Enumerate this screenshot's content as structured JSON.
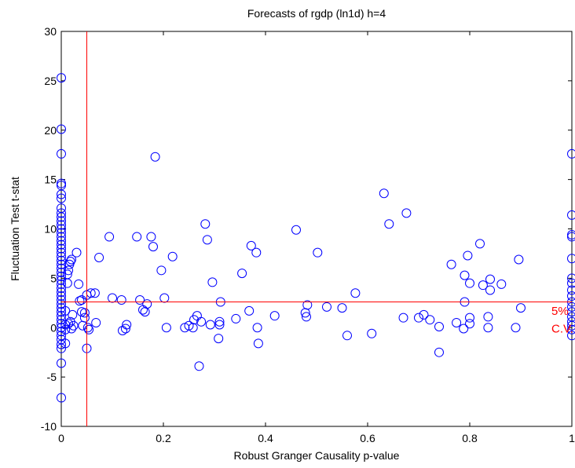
{
  "chart_data": {
    "type": "scatter",
    "title": "Forecasts of rgdp (ln1d) h=4",
    "xlabel": "Robust Granger Causality p-value",
    "ylabel": "Fluctuation Test t-stat",
    "xlim": [
      0,
      1
    ],
    "ylim": [
      -10,
      30
    ],
    "xticks": [
      "0",
      "0.2",
      "0.4",
      "0.6",
      "0.8",
      "1"
    ],
    "xtick_values": [
      0,
      0.2,
      0.4,
      0.6,
      0.8,
      1
    ],
    "yticks": [
      "-10",
      "-5",
      "0",
      "5",
      "10",
      "15",
      "20",
      "25",
      "30"
    ],
    "ytick_values": [
      -10,
      -5,
      0,
      5,
      10,
      15,
      20,
      25,
      30
    ],
    "grid": false,
    "marker": "open-circle",
    "marker_color": "#0000ff",
    "reference_lines": [
      {
        "orientation": "vertical",
        "value": 0.05,
        "color": "#ff0000"
      },
      {
        "orientation": "horizontal",
        "value": 2.6,
        "color": "#ff0000"
      }
    ],
    "annotation": {
      "line1": "5%",
      "line2": "C.V.",
      "x": 0.96,
      "y1": 1.3,
      "y2": -0.5,
      "color": "#ff0000"
    },
    "series": [
      {
        "points": [
          [
            0,
            25.3
          ],
          [
            0,
            20.1
          ],
          [
            0,
            17.6
          ],
          [
            0,
            14.6
          ],
          [
            0,
            14.4
          ],
          [
            0,
            13.5
          ],
          [
            0,
            13.1
          ],
          [
            0,
            12.1
          ],
          [
            0,
            11.6
          ],
          [
            0,
            11.2
          ],
          [
            0,
            10.8
          ],
          [
            0,
            10.4
          ],
          [
            0,
            10.0
          ],
          [
            0,
            9.6
          ],
          [
            0,
            9.2
          ],
          [
            0,
            8.8
          ],
          [
            0,
            8.4
          ],
          [
            0,
            8.0
          ],
          [
            0,
            7.6
          ],
          [
            0,
            7.2
          ],
          [
            0,
            6.8
          ],
          [
            0,
            6.4
          ],
          [
            0,
            6.0
          ],
          [
            0,
            5.6
          ],
          [
            0,
            5.2
          ],
          [
            0,
            4.8
          ],
          [
            0,
            4.4
          ],
          [
            0,
            4.0
          ],
          [
            0,
            3.6
          ],
          [
            0,
            3.2
          ],
          [
            0,
            2.8
          ],
          [
            0,
            2.4
          ],
          [
            0,
            2.0
          ],
          [
            0,
            1.6
          ],
          [
            0,
            1.2
          ],
          [
            0,
            0.8
          ],
          [
            0,
            0.4
          ],
          [
            0,
            0.0
          ],
          [
            0,
            -0.4
          ],
          [
            0,
            -0.8
          ],
          [
            0,
            -1.2
          ],
          [
            0,
            -1.7
          ],
          [
            0,
            -2.1
          ],
          [
            0,
            -3.6
          ],
          [
            0,
            -7.1
          ],
          [
            0.008,
            1.7
          ],
          [
            0.008,
            0.3
          ],
          [
            0.008,
            -0.2
          ],
          [
            0.008,
            -1.6
          ],
          [
            0.012,
            4.5
          ],
          [
            0.012,
            5.4
          ],
          [
            0.014,
            5.8
          ],
          [
            0.016,
            6.4
          ],
          [
            0.018,
            6.7
          ],
          [
            0.02,
            6.9
          ],
          [
            0.014,
            0.4
          ],
          [
            0.018,
            0.6
          ],
          [
            0.022,
            1.3
          ],
          [
            0.02,
            -0.1
          ],
          [
            0.024,
            0.2
          ],
          [
            0.03,
            7.6
          ],
          [
            0.034,
            4.4
          ],
          [
            0.036,
            2.7
          ],
          [
            0.04,
            2.8
          ],
          [
            0.04,
            1.6
          ],
          [
            0.042,
            0.2
          ],
          [
            0.046,
            1.0
          ],
          [
            0.046,
            1.5
          ],
          [
            0.05,
            -2.1
          ],
          [
            0.05,
            3.3
          ],
          [
            0.052,
            0.0
          ],
          [
            0.054,
            -0.2
          ],
          [
            0.058,
            3.5
          ],
          [
            0.066,
            3.5
          ],
          [
            0.068,
            0.5
          ],
          [
            0.074,
            7.1
          ],
          [
            0.094,
            9.2
          ],
          [
            0.1,
            3.0
          ],
          [
            0.118,
            2.8
          ],
          [
            0.12,
            -0.3
          ],
          [
            0.126,
            -0.1
          ],
          [
            0.128,
            0.3
          ],
          [
            0.148,
            9.2
          ],
          [
            0.154,
            2.8
          ],
          [
            0.16,
            1.8
          ],
          [
            0.164,
            1.6
          ],
          [
            0.168,
            2.4
          ],
          [
            0.176,
            9.2
          ],
          [
            0.18,
            8.2
          ],
          [
            0.184,
            17.3
          ],
          [
            0.196,
            5.8
          ],
          [
            0.202,
            3.0
          ],
          [
            0.206,
            0.0
          ],
          [
            0.218,
            7.2
          ],
          [
            0.242,
            0.0
          ],
          [
            0.25,
            0.2
          ],
          [
            0.258,
            0.0
          ],
          [
            0.26,
            0.8
          ],
          [
            0.266,
            1.2
          ],
          [
            0.27,
            -3.9
          ],
          [
            0.274,
            0.6
          ],
          [
            0.282,
            10.5
          ],
          [
            0.286,
            8.9
          ],
          [
            0.292,
            0.3
          ],
          [
            0.296,
            4.6
          ],
          [
            0.308,
            -1.1
          ],
          [
            0.31,
            0.3
          ],
          [
            0.31,
            0.6
          ],
          [
            0.312,
            2.6
          ],
          [
            0.342,
            0.9
          ],
          [
            0.354,
            5.5
          ],
          [
            0.368,
            1.7
          ],
          [
            0.372,
            8.3
          ],
          [
            0.382,
            7.6
          ],
          [
            0.384,
            0.0
          ],
          [
            0.386,
            -1.6
          ],
          [
            0.418,
            1.2
          ],
          [
            0.46,
            9.9
          ],
          [
            0.478,
            1.5
          ],
          [
            0.48,
            1.1
          ],
          [
            0.482,
            2.3
          ],
          [
            0.502,
            7.6
          ],
          [
            0.52,
            2.1
          ],
          [
            0.55,
            2.0
          ],
          [
            0.56,
            -0.8
          ],
          [
            0.576,
            3.5
          ],
          [
            0.608,
            -0.6
          ],
          [
            0.632,
            13.6
          ],
          [
            0.642,
            10.5
          ],
          [
            0.67,
            1.0
          ],
          [
            0.676,
            11.6
          ],
          [
            0.7,
            1.0
          ],
          [
            0.71,
            1.3
          ],
          [
            0.722,
            0.8
          ],
          [
            0.74,
            -2.5
          ],
          [
            0.74,
            0.1
          ],
          [
            0.764,
            6.4
          ],
          [
            0.774,
            0.5
          ],
          [
            0.788,
            -0.1
          ],
          [
            0.79,
            2.6
          ],
          [
            0.79,
            5.3
          ],
          [
            0.796,
            7.3
          ],
          [
            0.8,
            0.4
          ],
          [
            0.8,
            1.0
          ],
          [
            0.8,
            4.5
          ],
          [
            0.82,
            8.5
          ],
          [
            0.826,
            4.3
          ],
          [
            0.836,
            1.1
          ],
          [
            0.836,
            0.0
          ],
          [
            0.84,
            4.9
          ],
          [
            0.84,
            3.8
          ],
          [
            0.862,
            4.4
          ],
          [
            0.89,
            0.0
          ],
          [
            0.896,
            6.9
          ],
          [
            0.9,
            2.0
          ],
          [
            1.0,
            17.6
          ],
          [
            1.0,
            11.4
          ],
          [
            1.0,
            9.4
          ],
          [
            1.0,
            9.2
          ],
          [
            1.0,
            7.0
          ],
          [
            1.0,
            5.0
          ],
          [
            1.0,
            4.5
          ],
          [
            1.0,
            3.8
          ],
          [
            1.0,
            3.2
          ],
          [
            1.0,
            2.6
          ],
          [
            1.0,
            2.1
          ],
          [
            1.0,
            1.6
          ],
          [
            1.0,
            1.1
          ],
          [
            1.0,
            0.6
          ],
          [
            1.0,
            0.2
          ],
          [
            1.0,
            -0.2
          ],
          [
            1.0,
            -0.8
          ]
        ]
      }
    ]
  }
}
